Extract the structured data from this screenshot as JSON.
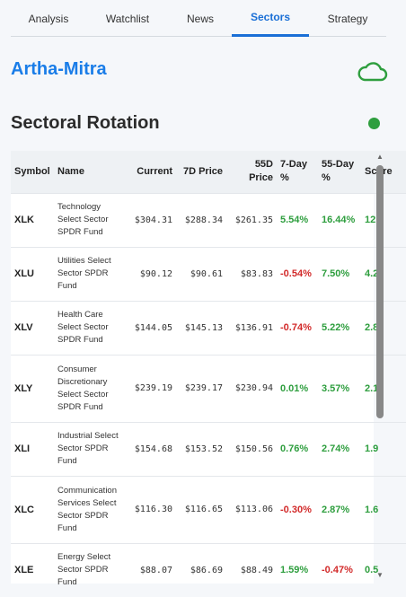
{
  "tabs": [
    {
      "label": "Analysis"
    },
    {
      "label": "Watchlist"
    },
    {
      "label": "News"
    },
    {
      "label": "Sectors",
      "active": true
    },
    {
      "label": "Strategy"
    }
  ],
  "brand": "Artha-Mitra",
  "section_title": "Sectoral Rotation",
  "colors": {
    "accent": "#1a6fd6",
    "brand": "#1a7de8",
    "positive": "#2e9e3e",
    "negative": "#d22a2a",
    "status": "#2e9e3e"
  },
  "icons": {
    "cloud": "cloud-icon",
    "status": "status-dot"
  },
  "table": {
    "headers": [
      "Symbol",
      "Name",
      "Current",
      "7D Price",
      "55D Price",
      "7-Day %",
      "55-Day %",
      "Score"
    ],
    "rows": [
      {
        "symbol": "XLK",
        "name": "Technology Select Sector SPDR Fund",
        "current": "$304.31",
        "d7": "$288.34",
        "d55": "$261.35",
        "p7": "5.54%",
        "p55": "16.44%",
        "score": "12"
      },
      {
        "symbol": "XLU",
        "name": "Utilities Select Sector SPDR Fund",
        "current": "$90.12",
        "d7": "$90.61",
        "d55": "$83.83",
        "p7": "-0.54%",
        "p55": "7.50%",
        "score": "4.2"
      },
      {
        "symbol": "XLV",
        "name": "Health Care Select Sector SPDR Fund",
        "current": "$144.05",
        "d7": "$145.13",
        "d55": "$136.91",
        "p7": "-0.74%",
        "p55": "5.22%",
        "score": "2.8"
      },
      {
        "symbol": "XLY",
        "name": "Consumer Discretionary Select Sector SPDR Fund",
        "current": "$239.19",
        "d7": "$239.17",
        "d55": "$230.94",
        "p7": "0.01%",
        "p55": "3.57%",
        "score": "2.1"
      },
      {
        "symbol": "XLI",
        "name": "Industrial Select Sector SPDR Fund",
        "current": "$154.68",
        "d7": "$153.52",
        "d55": "$150.56",
        "p7": "0.76%",
        "p55": "2.74%",
        "score": "1.9"
      },
      {
        "symbol": "XLC",
        "name": "Communication Services Select Sector SPDR Fund",
        "current": "$116.30",
        "d7": "$116.65",
        "d55": "$113.06",
        "p7": "-0.30%",
        "p55": "2.87%",
        "score": "1.6"
      },
      {
        "symbol": "XLE",
        "name": "Energy Select Sector SPDR Fund",
        "current": "$88.07",
        "d7": "$86.69",
        "d55": "$88.49",
        "p7": "1.59%",
        "p55": "-0.47%",
        "score": "0.5"
      }
    ]
  }
}
